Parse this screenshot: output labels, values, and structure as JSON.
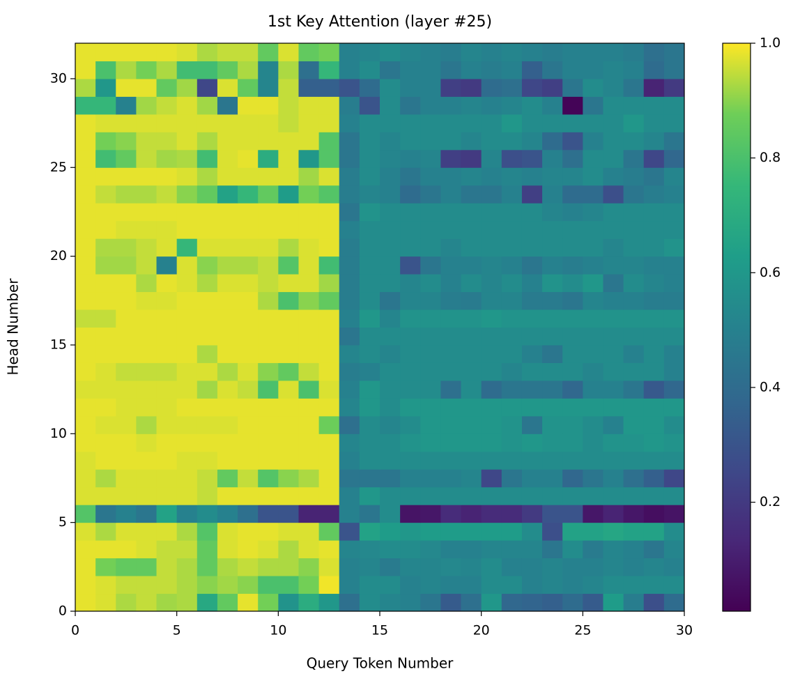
{
  "chart_data": {
    "type": "heatmap",
    "title": "1st Key Attention (layer #25)",
    "xlabel": "Query Token Number",
    "ylabel": "Head Number",
    "colormap": "viridis",
    "xlim": [
      0,
      30
    ],
    "xticks": [
      0,
      5,
      10,
      15,
      20,
      25,
      30
    ],
    "ylim": [
      0,
      32
    ],
    "yticks": [
      0,
      5,
      10,
      15,
      20,
      25,
      30
    ],
    "colorbar": {
      "lim": [
        0.01,
        1.0
      ],
      "ticks": [
        0.2,
        0.4,
        0.6,
        0.8,
        {
          "value": 1.0,
          "label": "1.0"
        }
      ]
    },
    "values": [
      [
        0.98,
        0.97,
        0.93,
        0.95,
        0.92,
        0.93,
        0.68,
        0.85,
        0.98,
        0.88,
        0.58,
        0.7,
        0.6,
        0.42,
        0.55,
        0.52,
        0.5,
        0.45,
        0.33,
        0.42,
        0.6,
        0.38,
        0.37,
        0.35,
        0.4,
        0.33,
        0.62,
        0.48,
        0.28,
        0.4
      ],
      [
        0.98,
        0.97,
        0.95,
        0.95,
        0.95,
        0.93,
        0.9,
        0.92,
        0.9,
        0.8,
        0.8,
        0.88,
        0.99,
        0.5,
        0.55,
        0.55,
        0.5,
        0.52,
        0.5,
        0.5,
        0.55,
        0.55,
        0.5,
        0.52,
        0.5,
        0.52,
        0.55,
        0.55,
        0.55,
        0.55
      ],
      [
        0.98,
        0.88,
        0.85,
        0.85,
        0.95,
        0.93,
        0.85,
        0.93,
        0.95,
        0.93,
        0.93,
        0.9,
        0.97,
        0.5,
        0.52,
        0.47,
        0.52,
        0.52,
        0.53,
        0.52,
        0.55,
        0.5,
        0.5,
        0.52,
        0.5,
        0.5,
        0.52,
        0.5,
        0.52,
        0.5
      ],
      [
        0.98,
        0.98,
        0.98,
        0.97,
        0.95,
        0.95,
        0.85,
        0.97,
        0.98,
        0.97,
        0.93,
        0.97,
        0.98,
        0.52,
        0.53,
        0.55,
        0.55,
        0.53,
        0.5,
        0.5,
        0.52,
        0.52,
        0.52,
        0.45,
        0.55,
        0.47,
        0.52,
        0.5,
        0.45,
        0.52
      ],
      [
        0.97,
        0.93,
        0.97,
        0.97,
        0.97,
        0.93,
        0.82,
        0.97,
        0.98,
        0.98,
        0.97,
        0.97,
        0.85,
        0.3,
        0.65,
        0.62,
        0.6,
        0.62,
        0.62,
        0.62,
        0.62,
        0.62,
        0.55,
        0.28,
        0.65,
        0.65,
        0.67,
        0.65,
        0.65,
        0.55
      ],
      [
        0.82,
        0.45,
        0.5,
        0.45,
        0.65,
        0.5,
        0.55,
        0.5,
        0.42,
        0.3,
        0.3,
        0.12,
        0.12,
        0.5,
        0.45,
        0.55,
        0.07,
        0.08,
        0.15,
        0.12,
        0.15,
        0.15,
        0.2,
        0.3,
        0.3,
        0.08,
        0.12,
        0.08,
        0.05,
        0.07
      ],
      [
        0.97,
        0.97,
        0.97,
        0.97,
        0.97,
        0.97,
        0.95,
        0.98,
        0.98,
        0.98,
        0.98,
        0.98,
        0.98,
        0.5,
        0.6,
        0.55,
        0.55,
        0.55,
        0.55,
        0.55,
        0.55,
        0.55,
        0.55,
        0.55,
        0.55,
        0.55,
        0.55,
        0.55,
        0.55,
        0.55
      ],
      [
        0.97,
        0.93,
        0.97,
        0.97,
        0.97,
        0.97,
        0.95,
        0.85,
        0.95,
        0.82,
        0.9,
        0.93,
        0.98,
        0.45,
        0.45,
        0.45,
        0.5,
        0.5,
        0.5,
        0.52,
        0.25,
        0.45,
        0.5,
        0.5,
        0.38,
        0.45,
        0.5,
        0.42,
        0.35,
        0.25
      ],
      [
        0.97,
        0.98,
        0.98,
        0.98,
        0.98,
        0.97,
        0.97,
        0.98,
        0.98,
        0.98,
        0.98,
        0.98,
        0.98,
        0.5,
        0.55,
        0.55,
        0.55,
        0.55,
        0.55,
        0.55,
        0.55,
        0.55,
        0.55,
        0.55,
        0.55,
        0.55,
        0.55,
        0.55,
        0.55,
        0.55
      ],
      [
        0.98,
        0.98,
        0.98,
        0.97,
        0.98,
        0.98,
        0.98,
        0.98,
        0.98,
        0.98,
        0.98,
        0.98,
        0.98,
        0.52,
        0.55,
        0.55,
        0.58,
        0.6,
        0.6,
        0.6,
        0.6,
        0.58,
        0.6,
        0.58,
        0.58,
        0.55,
        0.58,
        0.58,
        0.6,
        0.58
      ],
      [
        0.98,
        0.97,
        0.97,
        0.93,
        0.97,
        0.97,
        0.97,
        0.97,
        0.98,
        0.98,
        0.98,
        0.98,
        0.87,
        0.42,
        0.55,
        0.52,
        0.55,
        0.6,
        0.6,
        0.6,
        0.6,
        0.58,
        0.45,
        0.58,
        0.58,
        0.55,
        0.5,
        0.6,
        0.6,
        0.55
      ],
      [
        0.98,
        0.98,
        0.97,
        0.97,
        0.97,
        0.98,
        0.98,
        0.98,
        0.98,
        0.98,
        0.98,
        0.98,
        0.98,
        0.52,
        0.6,
        0.55,
        0.6,
        0.6,
        0.6,
        0.6,
        0.6,
        0.6,
        0.6,
        0.6,
        0.6,
        0.6,
        0.6,
        0.6,
        0.6,
        0.6
      ],
      [
        0.97,
        0.97,
        0.97,
        0.97,
        0.97,
        0.97,
        0.92,
        0.97,
        0.95,
        0.8,
        0.97,
        0.8,
        0.97,
        0.5,
        0.6,
        0.55,
        0.55,
        0.55,
        0.42,
        0.55,
        0.4,
        0.45,
        0.45,
        0.45,
        0.38,
        0.5,
        0.5,
        0.45,
        0.32,
        0.38
      ],
      [
        0.98,
        0.97,
        0.95,
        0.95,
        0.95,
        0.97,
        0.97,
        0.93,
        0.97,
        0.9,
        0.85,
        0.95,
        0.98,
        0.48,
        0.5,
        0.55,
        0.55,
        0.55,
        0.55,
        0.55,
        0.55,
        0.52,
        0.55,
        0.55,
        0.55,
        0.52,
        0.55,
        0.55,
        0.55,
        0.5
      ],
      [
        0.98,
        0.98,
        0.98,
        0.98,
        0.98,
        0.98,
        0.93,
        0.98,
        0.98,
        0.98,
        0.98,
        0.98,
        0.98,
        0.52,
        0.55,
        0.52,
        0.55,
        0.55,
        0.55,
        0.55,
        0.55,
        0.55,
        0.5,
        0.45,
        0.55,
        0.55,
        0.55,
        0.5,
        0.55,
        0.5
      ],
      [
        0.98,
        0.98,
        0.98,
        0.98,
        0.98,
        0.98,
        0.98,
        0.98,
        0.98,
        0.98,
        0.98,
        0.98,
        0.98,
        0.45,
        0.55,
        0.55,
        0.55,
        0.55,
        0.55,
        0.55,
        0.55,
        0.55,
        0.55,
        0.55,
        0.55,
        0.55,
        0.55,
        0.55,
        0.55,
        0.55
      ],
      [
        0.95,
        0.95,
        0.98,
        0.98,
        0.98,
        0.98,
        0.98,
        0.98,
        0.98,
        0.98,
        0.98,
        0.98,
        0.98,
        0.5,
        0.6,
        0.52,
        0.58,
        0.58,
        0.58,
        0.58,
        0.6,
        0.58,
        0.58,
        0.58,
        0.58,
        0.58,
        0.58,
        0.58,
        0.58,
        0.58
      ],
      [
        0.98,
        0.98,
        0.98,
        0.97,
        0.97,
        0.98,
        0.98,
        0.98,
        0.98,
        0.93,
        0.8,
        0.9,
        0.85,
        0.48,
        0.55,
        0.45,
        0.52,
        0.52,
        0.48,
        0.47,
        0.52,
        0.52,
        0.47,
        0.47,
        0.45,
        0.52,
        0.5,
        0.5,
        0.48,
        0.48
      ],
      [
        0.98,
        0.98,
        0.98,
        0.93,
        0.98,
        0.97,
        0.93,
        0.97,
        0.97,
        0.95,
        0.97,
        0.97,
        0.92,
        0.48,
        0.55,
        0.55,
        0.52,
        0.55,
        0.5,
        0.55,
        0.52,
        0.55,
        0.5,
        0.58,
        0.55,
        0.6,
        0.45,
        0.55,
        0.52,
        0.5
      ],
      [
        0.98,
        0.92,
        0.92,
        0.95,
        0.5,
        0.97,
        0.9,
        0.93,
        0.93,
        0.95,
        0.82,
        0.97,
        0.78,
        0.48,
        0.55,
        0.55,
        0.3,
        0.45,
        0.5,
        0.5,
        0.52,
        0.5,
        0.45,
        0.5,
        0.48,
        0.5,
        0.52,
        0.52,
        0.5,
        0.5
      ],
      [
        0.98,
        0.93,
        0.93,
        0.95,
        0.97,
        0.75,
        0.97,
        0.97,
        0.97,
        0.97,
        0.93,
        0.97,
        0.98,
        0.48,
        0.55,
        0.55,
        0.55,
        0.55,
        0.52,
        0.55,
        0.55,
        0.55,
        0.55,
        0.55,
        0.55,
        0.55,
        0.52,
        0.55,
        0.55,
        0.58
      ],
      [
        0.98,
        0.98,
        0.97,
        0.97,
        0.97,
        0.98,
        0.98,
        0.98,
        0.98,
        0.98,
        0.98,
        0.98,
        0.98,
        0.5,
        0.55,
        0.55,
        0.55,
        0.55,
        0.55,
        0.55,
        0.55,
        0.55,
        0.55,
        0.55,
        0.55,
        0.55,
        0.55,
        0.55,
        0.55,
        0.55
      ],
      [
        0.98,
        0.98,
        0.98,
        0.98,
        0.98,
        0.98,
        0.98,
        0.98,
        0.98,
        0.98,
        0.98,
        0.98,
        0.98,
        0.45,
        0.58,
        0.55,
        0.55,
        0.55,
        0.55,
        0.55,
        0.55,
        0.55,
        0.55,
        0.52,
        0.5,
        0.52,
        0.55,
        0.55,
        0.55,
        0.55
      ],
      [
        0.98,
        0.95,
        0.93,
        0.93,
        0.95,
        0.9,
        0.85,
        0.65,
        0.75,
        0.85,
        0.62,
        0.88,
        0.82,
        0.48,
        0.52,
        0.5,
        0.4,
        0.45,
        0.5,
        0.45,
        0.45,
        0.5,
        0.22,
        0.5,
        0.4,
        0.4,
        0.28,
        0.45,
        0.48,
        0.5
      ],
      [
        0.98,
        0.98,
        0.98,
        0.98,
        0.98,
        0.97,
        0.93,
        0.97,
        0.97,
        0.97,
        0.97,
        0.92,
        0.97,
        0.48,
        0.55,
        0.5,
        0.45,
        0.5,
        0.5,
        0.52,
        0.5,
        0.52,
        0.5,
        0.52,
        0.52,
        0.55,
        0.5,
        0.48,
        0.45,
        0.52
      ],
      [
        0.98,
        0.78,
        0.85,
        0.95,
        0.92,
        0.93,
        0.78,
        0.97,
        0.98,
        0.7,
        0.97,
        0.6,
        0.82,
        0.45,
        0.55,
        0.52,
        0.5,
        0.52,
        0.22,
        0.2,
        0.52,
        0.28,
        0.3,
        0.5,
        0.42,
        0.55,
        0.55,
        0.45,
        0.25,
        0.38
      ],
      [
        0.98,
        0.88,
        0.9,
        0.95,
        0.95,
        0.97,
        0.93,
        0.97,
        0.97,
        0.97,
        0.97,
        0.97,
        0.82,
        0.45,
        0.55,
        0.52,
        0.55,
        0.55,
        0.55,
        0.52,
        0.55,
        0.55,
        0.52,
        0.4,
        0.3,
        0.5,
        0.55,
        0.55,
        0.52,
        0.45
      ],
      [
        0.98,
        0.97,
        0.97,
        0.97,
        0.97,
        0.97,
        0.97,
        0.97,
        0.97,
        0.97,
        0.95,
        0.97,
        0.97,
        0.5,
        0.55,
        0.55,
        0.55,
        0.55,
        0.55,
        0.55,
        0.55,
        0.6,
        0.55,
        0.55,
        0.55,
        0.55,
        0.55,
        0.6,
        0.55,
        0.55
      ],
      [
        0.75,
        0.75,
        0.5,
        0.92,
        0.95,
        0.97,
        0.92,
        0.45,
        0.98,
        0.98,
        0.95,
        0.97,
        0.97,
        0.48,
        0.3,
        0.55,
        0.45,
        0.5,
        0.5,
        0.52,
        0.5,
        0.52,
        0.55,
        0.5,
        0.02,
        0.45,
        0.55,
        0.55,
        0.55,
        0.55
      ],
      [
        0.93,
        0.6,
        0.98,
        0.98,
        0.85,
        0.92,
        0.25,
        0.97,
        0.85,
        0.52,
        0.95,
        0.35,
        0.35,
        0.3,
        0.4,
        0.55,
        0.5,
        0.5,
        0.22,
        0.2,
        0.4,
        0.42,
        0.25,
        0.22,
        0.45,
        0.55,
        0.52,
        0.45,
        0.12,
        0.2
      ],
      [
        0.98,
        0.8,
        0.93,
        0.88,
        0.93,
        0.78,
        0.78,
        0.85,
        0.93,
        0.52,
        0.93,
        0.42,
        0.75,
        0.5,
        0.55,
        0.45,
        0.5,
        0.5,
        0.45,
        0.5,
        0.48,
        0.5,
        0.35,
        0.45,
        0.5,
        0.5,
        0.52,
        0.5,
        0.4,
        0.45
      ],
      [
        0.98,
        0.98,
        0.98,
        0.98,
        0.98,
        0.97,
        0.93,
        0.95,
        0.95,
        0.85,
        0.97,
        0.85,
        0.88,
        0.5,
        0.52,
        0.55,
        0.52,
        0.5,
        0.48,
        0.52,
        0.5,
        0.52,
        0.5,
        0.48,
        0.5,
        0.5,
        0.5,
        0.48,
        0.42,
        0.45
      ]
    ]
  }
}
